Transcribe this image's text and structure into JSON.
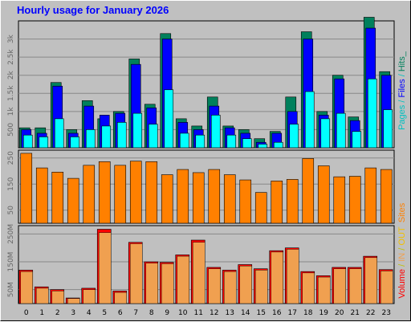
{
  "chart_data": [
    {
      "type": "bar",
      "title": "Hourly usage for January 2026",
      "categories": [
        "0",
        "1",
        "2",
        "3",
        "4",
        "5",
        "6",
        "7",
        "8",
        "9",
        "10",
        "11",
        "12",
        "13",
        "14",
        "15",
        "16",
        "17",
        "18",
        "19",
        "20",
        "21",
        "22",
        "23"
      ],
      "ylim": [
        0,
        3500
      ],
      "ytick_labels": [
        "500",
        "1k",
        "1.5k",
        "2k",
        "2.5k",
        "3k"
      ],
      "ytick_values": [
        500,
        1000,
        1500,
        2000,
        2500,
        3000
      ],
      "series": [
        {
          "name": "Pages",
          "color": "#00ffff",
          "values": [
            350,
            300,
            800,
            300,
            500,
            600,
            700,
            950,
            650,
            1600,
            400,
            350,
            900,
            350,
            250,
            100,
            150,
            650,
            1550,
            800,
            950,
            450,
            1900,
            1050
          ]
        },
        {
          "name": "Files",
          "color": "#0000ff",
          "values": [
            500,
            400,
            1700,
            400,
            1150,
            900,
            950,
            2300,
            1100,
            3000,
            700,
            500,
            1150,
            550,
            400,
            150,
            400,
            1000,
            3000,
            900,
            1900,
            750,
            3300,
            2000
          ]
        },
        {
          "name": "Hits",
          "color": "#00805c",
          "values": [
            550,
            550,
            1800,
            500,
            1300,
            800,
            1000,
            2450,
            1200,
            3150,
            800,
            600,
            1400,
            600,
            500,
            250,
            450,
            1400,
            3200,
            1000,
            2000,
            850,
            3600,
            2100
          ]
        }
      ]
    },
    {
      "type": "bar",
      "categories": [
        "0",
        "1",
        "2",
        "3",
        "4",
        "5",
        "6",
        "7",
        "8",
        "9",
        "10",
        "11",
        "12",
        "13",
        "14",
        "15",
        "16",
        "17",
        "18",
        "19",
        "20",
        "21",
        "22",
        "23"
      ],
      "ylim": [
        0,
        280
      ],
      "ytick_labels": [
        "50",
        "150",
        "250"
      ],
      "ytick_values": [
        50,
        150,
        250
      ],
      "series": [
        {
          "name": "Sites",
          "color": "#ff8000",
          "values": [
            268,
            212,
            196,
            172,
            222,
            236,
            222,
            238,
            236,
            186,
            206,
            194,
            206,
            186,
            166,
            118,
            162,
            168,
            248,
            220,
            178,
            180,
            212,
            206
          ]
        }
      ]
    },
    {
      "type": "bar",
      "categories": [
        "0",
        "1",
        "2",
        "3",
        "4",
        "5",
        "6",
        "7",
        "8",
        "9",
        "10",
        "11",
        "12",
        "13",
        "14",
        "15",
        "16",
        "17",
        "18",
        "19",
        "20",
        "21",
        "22",
        "23"
      ],
      "ylim": [
        0,
        280
      ],
      "ytick_labels": [
        "50M",
        "150M",
        "250M"
      ],
      "ytick_values": [
        50,
        150,
        250
      ],
      "series": [
        {
          "name": "Volume",
          "color": "#ff0000",
          "values": [
            120,
            60,
            50,
            20,
            55,
            267,
            45,
            220,
            150,
            148,
            175,
            228,
            130,
            120,
            140,
            125,
            190,
            200,
            115,
            100,
            130,
            130,
            170,
            122
          ]
        },
        {
          "name": "IN",
          "color": "#f0a050",
          "values": [
            115,
            55,
            45,
            18,
            50,
            255,
            40,
            215,
            145,
            143,
            170,
            220,
            125,
            115,
            135,
            120,
            185,
            195,
            110,
            95,
            125,
            125,
            165,
            117
          ]
        }
      ]
    }
  ],
  "legend": {
    "top": [
      {
        "text": "Pages",
        "color": "#00c0c0"
      },
      {
        "text": " / ",
        "color": "#00c0c0"
      },
      {
        "text": "Files",
        "color": "#0000ff"
      },
      {
        "text": " / ",
        "color": "#00c0c0"
      },
      {
        "text": "Hits",
        "color": "#00805c"
      },
      {
        "text": "_",
        "color": "#00805c"
      }
    ],
    "middle": [
      {
        "text": "Sites",
        "color": "#ff8000"
      }
    ],
    "bottom": [
      {
        "text": "Volume",
        "color": "#ff0000"
      },
      {
        "text": " / ",
        "color": "#c0c000"
      },
      {
        "text": "IN",
        "color": "#f0a050"
      },
      {
        "text": " / ",
        "color": "#c0c000"
      },
      {
        "text": "OUT",
        "color": "#f0c000"
      }
    ]
  }
}
